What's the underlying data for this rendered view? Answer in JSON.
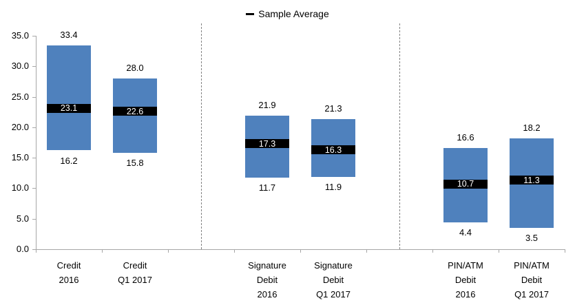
{
  "chart_data": {
    "type": "floating-bar",
    "title": "",
    "legend_label": "Sample Average",
    "legend_position": "top-center",
    "grid": false,
    "ylim": [
      0.0,
      35.0
    ],
    "ytick_values": [
      0,
      5,
      10,
      15,
      20,
      25,
      30,
      35
    ],
    "ytick_labels": [
      "0.0",
      "5.0",
      "10.0",
      "15.0",
      "20.0",
      "25.0",
      "30.0",
      "35.0"
    ],
    "slot_count": 8,
    "separator_slots": [
      2,
      5
    ],
    "groups": [
      {
        "label_lines": [
          "Credit",
          "2016"
        ],
        "min": 16.2,
        "max": 33.4,
        "average": 23.1,
        "slot": 0
      },
      {
        "label_lines": [
          "Credit",
          "Q1 2017"
        ],
        "min": 15.8,
        "max": 28.0,
        "average": 22.6,
        "slot": 1
      },
      {
        "label_lines": [
          "Signature",
          "Debit",
          "2016"
        ],
        "min": 11.7,
        "max": 21.9,
        "average": 17.3,
        "slot": 3
      },
      {
        "label_lines": [
          "Signature",
          "Debit",
          "Q1 2017"
        ],
        "min": 11.9,
        "max": 21.3,
        "average": 16.3,
        "slot": 4
      },
      {
        "label_lines": [
          "PIN/ATM",
          "Debit",
          "2016"
        ],
        "min": 4.4,
        "max": 16.6,
        "average": 10.7,
        "slot": 6
      },
      {
        "label_lines": [
          "PIN/ATM",
          "Debit",
          "Q1 2017"
        ],
        "min": 3.5,
        "max": 18.2,
        "average": 11.3,
        "slot": 7
      }
    ],
    "colors": {
      "bar": "#4F81BD",
      "average_band": "#000000",
      "average_text": "#FFFFFF",
      "axis": "#A6A6A6",
      "separator": "#808080",
      "label_text": "#000000"
    }
  }
}
